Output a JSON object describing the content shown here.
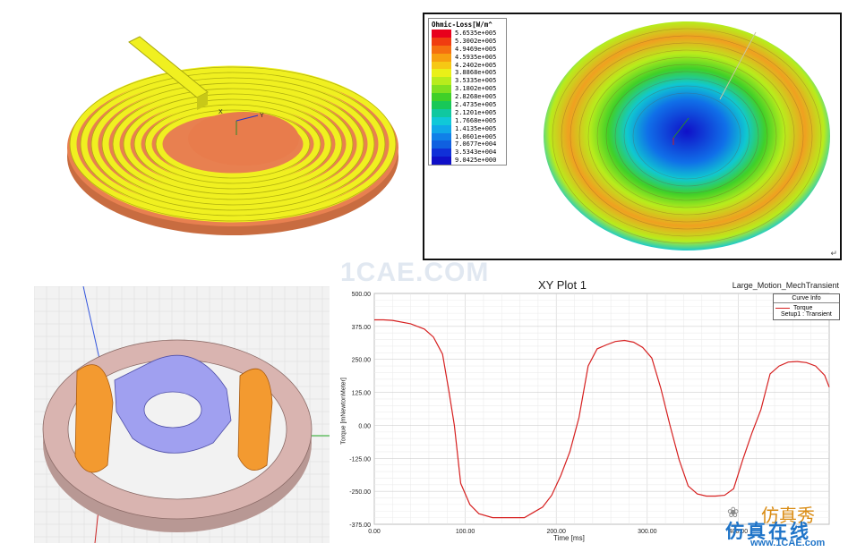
{
  "loss_legend": {
    "title": "Ohmic-Loss[W/m^",
    "entries": [
      {
        "label": "5.6535e+005",
        "color": "#e8001c"
      },
      {
        "label": "5.3002e+005",
        "color": "#f03c10"
      },
      {
        "label": "4.9469e+005",
        "color": "#f57010"
      },
      {
        "label": "4.5935e+005",
        "color": "#f7a010"
      },
      {
        "label": "4.2402e+005",
        "color": "#f6c814"
      },
      {
        "label": "3.8868e+005",
        "color": "#eaf018"
      },
      {
        "label": "3.5335e+005",
        "color": "#b8ec1c"
      },
      {
        "label": "3.1802e+005",
        "color": "#80e020"
      },
      {
        "label": "2.8268e+005",
        "color": "#40d028"
      },
      {
        "label": "2.4735e+005",
        "color": "#18c858"
      },
      {
        "label": "2.1201e+005",
        "color": "#10c8a0"
      },
      {
        "label": "1.7668e+005",
        "color": "#10c8d8"
      },
      {
        "label": "1.4135e+005",
        "color": "#10a8e8"
      },
      {
        "label": "1.0601e+005",
        "color": "#1080e8"
      },
      {
        "label": "7.0677e+004",
        "color": "#1060e0"
      },
      {
        "label": "3.5343e+004",
        "color": "#1030d8"
      },
      {
        "label": "9.0425e+000",
        "color": "#1010c8"
      }
    ],
    "mark": "↵"
  },
  "coil_axes": {
    "x": "X",
    "y": "Y"
  },
  "watermark": {
    "main": "1CAE.COM",
    "cn_top": "仿真秀",
    "cn_bottom": "仿真在线",
    "url": "www.1CAE.com",
    "wechat_icon": "wechat-icon"
  },
  "colors": {
    "curve": "#d62020",
    "coil": "#f0f020",
    "base": "#e88050",
    "ring": "#d9b4b0",
    "rotor": "#a0a0f0",
    "stator": "#f39a30"
  },
  "plot": {
    "title": "XY Plot 1",
    "subtitle": "Large_Motion_MechTransient",
    "curve_info_title": "Curve Info",
    "curve_name": "Torque",
    "curve_setup": "Setup1 : Transient"
  },
  "chart_data": {
    "type": "line",
    "title": "XY Plot 1",
    "subtitle": "Large_Motion_MechTransient",
    "xlabel": "Time [ms]",
    "ylabel": "Torque [mNewtonMeter]",
    "xlim": [
      0,
      500
    ],
    "ylim": [
      -375,
      500
    ],
    "xticks": [
      "0.00",
      "100.00",
      "200.00",
      "300.00",
      "400.00"
    ],
    "yticks": [
      "500.00",
      "375.00",
      "250.00",
      "125.00",
      "0.00",
      "-125.00",
      "-250.00",
      "-375.00"
    ],
    "grid": true,
    "legend_position": "top-right",
    "series": [
      {
        "name": "Torque",
        "x": [
          0,
          10,
          20,
          40,
          55,
          65,
          75,
          82,
          88,
          95,
          105,
          115,
          130,
          150,
          165,
          175,
          185,
          195,
          205,
          215,
          225,
          235,
          245,
          255,
          265,
          275,
          285,
          295,
          305,
          315,
          325,
          335,
          345,
          355,
          365,
          375,
          385,
          395,
          405,
          415,
          425,
          435,
          445,
          455,
          465,
          475,
          485,
          495,
          505
        ],
        "y": [
          400,
          400,
          398,
          385,
          365,
          335,
          270,
          130,
          0,
          -220,
          -300,
          -335,
          -350,
          -350,
          -350,
          -330,
          -310,
          -265,
          -190,
          -100,
          30,
          225,
          290,
          305,
          318,
          322,
          315,
          295,
          255,
          140,
          0,
          -130,
          -230,
          -260,
          -268,
          -268,
          -265,
          -240,
          -130,
          -30,
          60,
          195,
          225,
          240,
          242,
          238,
          225,
          190,
          145
        ]
      }
    ]
  }
}
